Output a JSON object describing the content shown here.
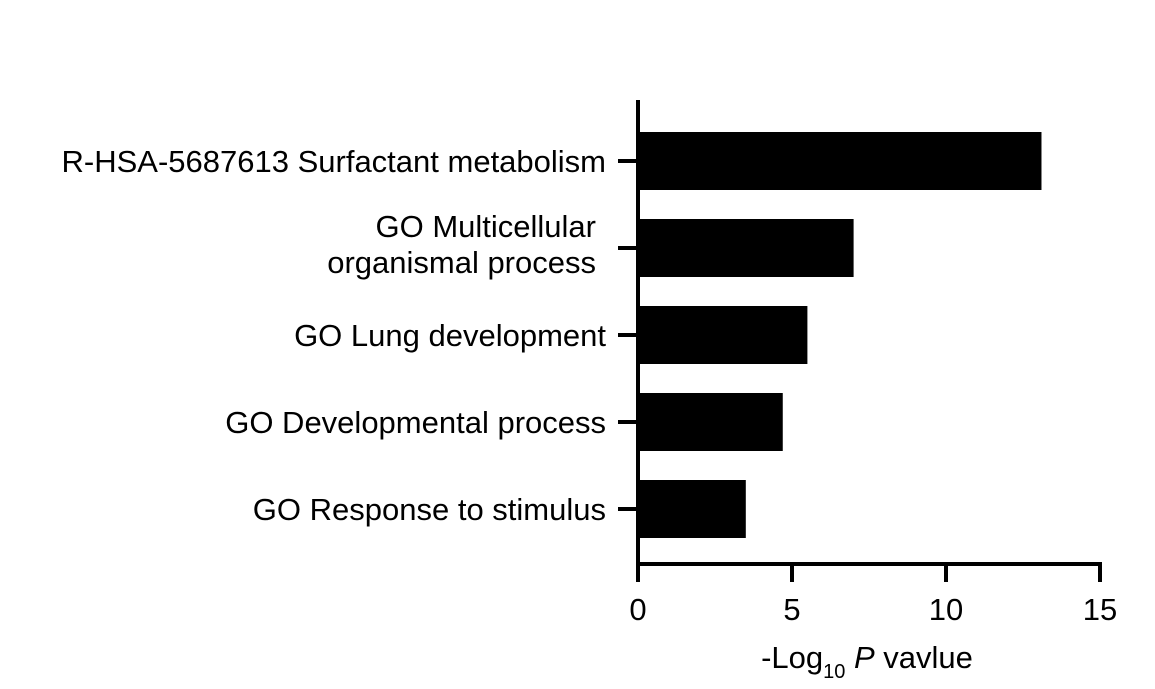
{
  "chart_data": {
    "type": "bar",
    "orientation": "horizontal",
    "categories": [
      [
        "R-HSA-5687613 Surfactant metabolism"
      ],
      [
        "GO Multicellular",
        "organismal process"
      ],
      [
        "GO Lung development"
      ],
      [
        "GO Developmental process"
      ],
      [
        "GO Response to stimulus"
      ]
    ],
    "values": [
      13.1,
      7.0,
      5.5,
      4.7,
      3.5
    ],
    "xlim": [
      0,
      15
    ],
    "xticks": [
      0,
      5,
      10,
      15
    ],
    "xlabel": {
      "prefix": "-Log",
      "subscript": "10",
      "italic": " P",
      "suffix": " vavlue"
    },
    "bar_color": "#000000",
    "grid": false,
    "legend": "none"
  }
}
